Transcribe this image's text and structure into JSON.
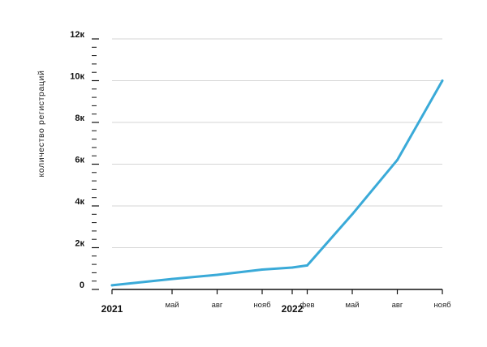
{
  "chart_data": {
    "type": "line",
    "title": "",
    "xlabel": "",
    "ylabel": "количество регистраций",
    "x_range": [
      "2021-01",
      "2022-11"
    ],
    "ylim": [
      0,
      12000
    ],
    "y_ticks": [
      {
        "value": 0,
        "label": "0"
      },
      {
        "value": 2000,
        "label": "2к"
      },
      {
        "value": 4000,
        "label": "4к"
      },
      {
        "value": 6000,
        "label": "6к"
      },
      {
        "value": 8000,
        "label": "8к"
      },
      {
        "value": 10000,
        "label": "10к"
      },
      {
        "value": 12000,
        "label": "12к"
      }
    ],
    "y_minor_step": 400,
    "x_ticks": [
      {
        "date": "2021-01",
        "label": "2021",
        "year": true
      },
      {
        "date": "2021-05",
        "label": "май",
        "year": false
      },
      {
        "date": "2021-08",
        "label": "авг",
        "year": false
      },
      {
        "date": "2021-11",
        "label": "нояб",
        "year": false
      },
      {
        "date": "2022-01",
        "label": "2022",
        "year": true
      },
      {
        "date": "2022-02",
        "label": "фев",
        "year": false
      },
      {
        "date": "2022-05",
        "label": "май",
        "year": false
      },
      {
        "date": "2022-08",
        "label": "авг",
        "year": false
      },
      {
        "date": "2022-11",
        "label": "нояб",
        "year": false
      }
    ],
    "grid": true,
    "series": [
      {
        "color": "#3aaad8",
        "points": [
          {
            "x": "2021-01",
            "y": 200
          },
          {
            "x": "2021-05",
            "y": 500
          },
          {
            "x": "2021-08",
            "y": 700
          },
          {
            "x": "2021-11",
            "y": 950
          },
          {
            "x": "2022-01",
            "y": 1050
          },
          {
            "x": "2022-02",
            "y": 1150
          },
          {
            "x": "2022-05",
            "y": 3600
          },
          {
            "x": "2022-08",
            "y": 6200
          },
          {
            "x": "2022-11",
            "y": 10000
          }
        ]
      }
    ],
    "colors": {
      "line": "#3aaad8",
      "grid": "#d6d6d6",
      "axis": "#111111"
    }
  }
}
